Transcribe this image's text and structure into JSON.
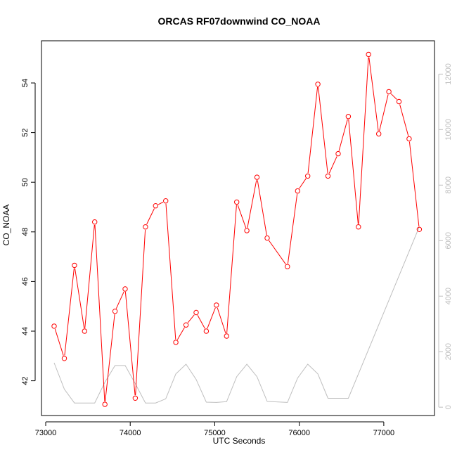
{
  "chart_data": {
    "type": "line",
    "title": "ORCAS RF07downwind CO_NOAA",
    "xlabel": "UTC Seconds",
    "ylabel": "CO_NOAA",
    "xlim": [
      72950,
      77600
    ],
    "ylim": [
      40.6,
      55.7
    ],
    "y2lim": [
      -300,
      13200
    ],
    "x_ticks": [
      73000,
      74000,
      75000,
      76000,
      77000
    ],
    "x_tick_labels": [
      "73000",
      "74000",
      "75000",
      "76000",
      "77000"
    ],
    "y_ticks": [
      42,
      44,
      46,
      48,
      50,
      52,
      54
    ],
    "y_tick_labels": [
      "42",
      "44",
      "46",
      "48",
      "50",
      "52",
      "54"
    ],
    "y2_ticks": [
      0,
      2000,
      4000,
      6000,
      8000,
      10000,
      12000
    ],
    "y2_tick_labels": [
      "0",
      "2000",
      "4000",
      "6000",
      "8000",
      "10000",
      "12000"
    ],
    "colors": {
      "series": "#ff0000",
      "secondary": "#bebebe",
      "frame": "#000000",
      "axis2": "#bebebe"
    },
    "series": [
      {
        "axis": "left",
        "style": "line+points",
        "x": [
          73100,
          73220,
          73340,
          73460,
          73580,
          73700,
          73820,
          73940,
          74060,
          74180,
          74300,
          74420,
          74540,
          74660,
          74780,
          74900,
          75020,
          75140,
          75260,
          75380,
          75500,
          75620,
          75860,
          75980,
          76100,
          76220,
          76340,
          76460,
          76580,
          76700,
          76820,
          76940,
          77060,
          77180,
          77300,
          77420
        ],
        "values": [
          44.2,
          42.9,
          46.65,
          44.0,
          48.4,
          41.05,
          44.8,
          45.7,
          41.3,
          48.2,
          49.05,
          49.25,
          43.55,
          44.25,
          44.75,
          44.0,
          45.05,
          43.8,
          49.2,
          48.05,
          50.2,
          47.75,
          46.6,
          49.65,
          50.25,
          53.95,
          50.25,
          51.15,
          52.65,
          48.2,
          55.15,
          51.95,
          53.65,
          53.25,
          51.75,
          48.1
        ]
      },
      {
        "axis": "right",
        "style": "line",
        "x": [
          73100,
          73220,
          73340,
          73460,
          73580,
          73700,
          73820,
          73940,
          74060,
          74180,
          74300,
          74420,
          74540,
          74660,
          74780,
          74900,
          75020,
          75140,
          75260,
          75380,
          75500,
          75620,
          75860,
          75980,
          76100,
          76220,
          76340,
          76460,
          76580,
          76700,
          77420
        ],
        "values": [
          1600,
          650,
          150,
          150,
          150,
          900,
          1500,
          1500,
          850,
          150,
          150,
          300,
          1200,
          1550,
          1000,
          180,
          170,
          200,
          1100,
          1550,
          1100,
          210,
          170,
          1050,
          1550,
          1200,
          320,
          320,
          320,
          1200,
          6500
        ]
      }
    ]
  }
}
